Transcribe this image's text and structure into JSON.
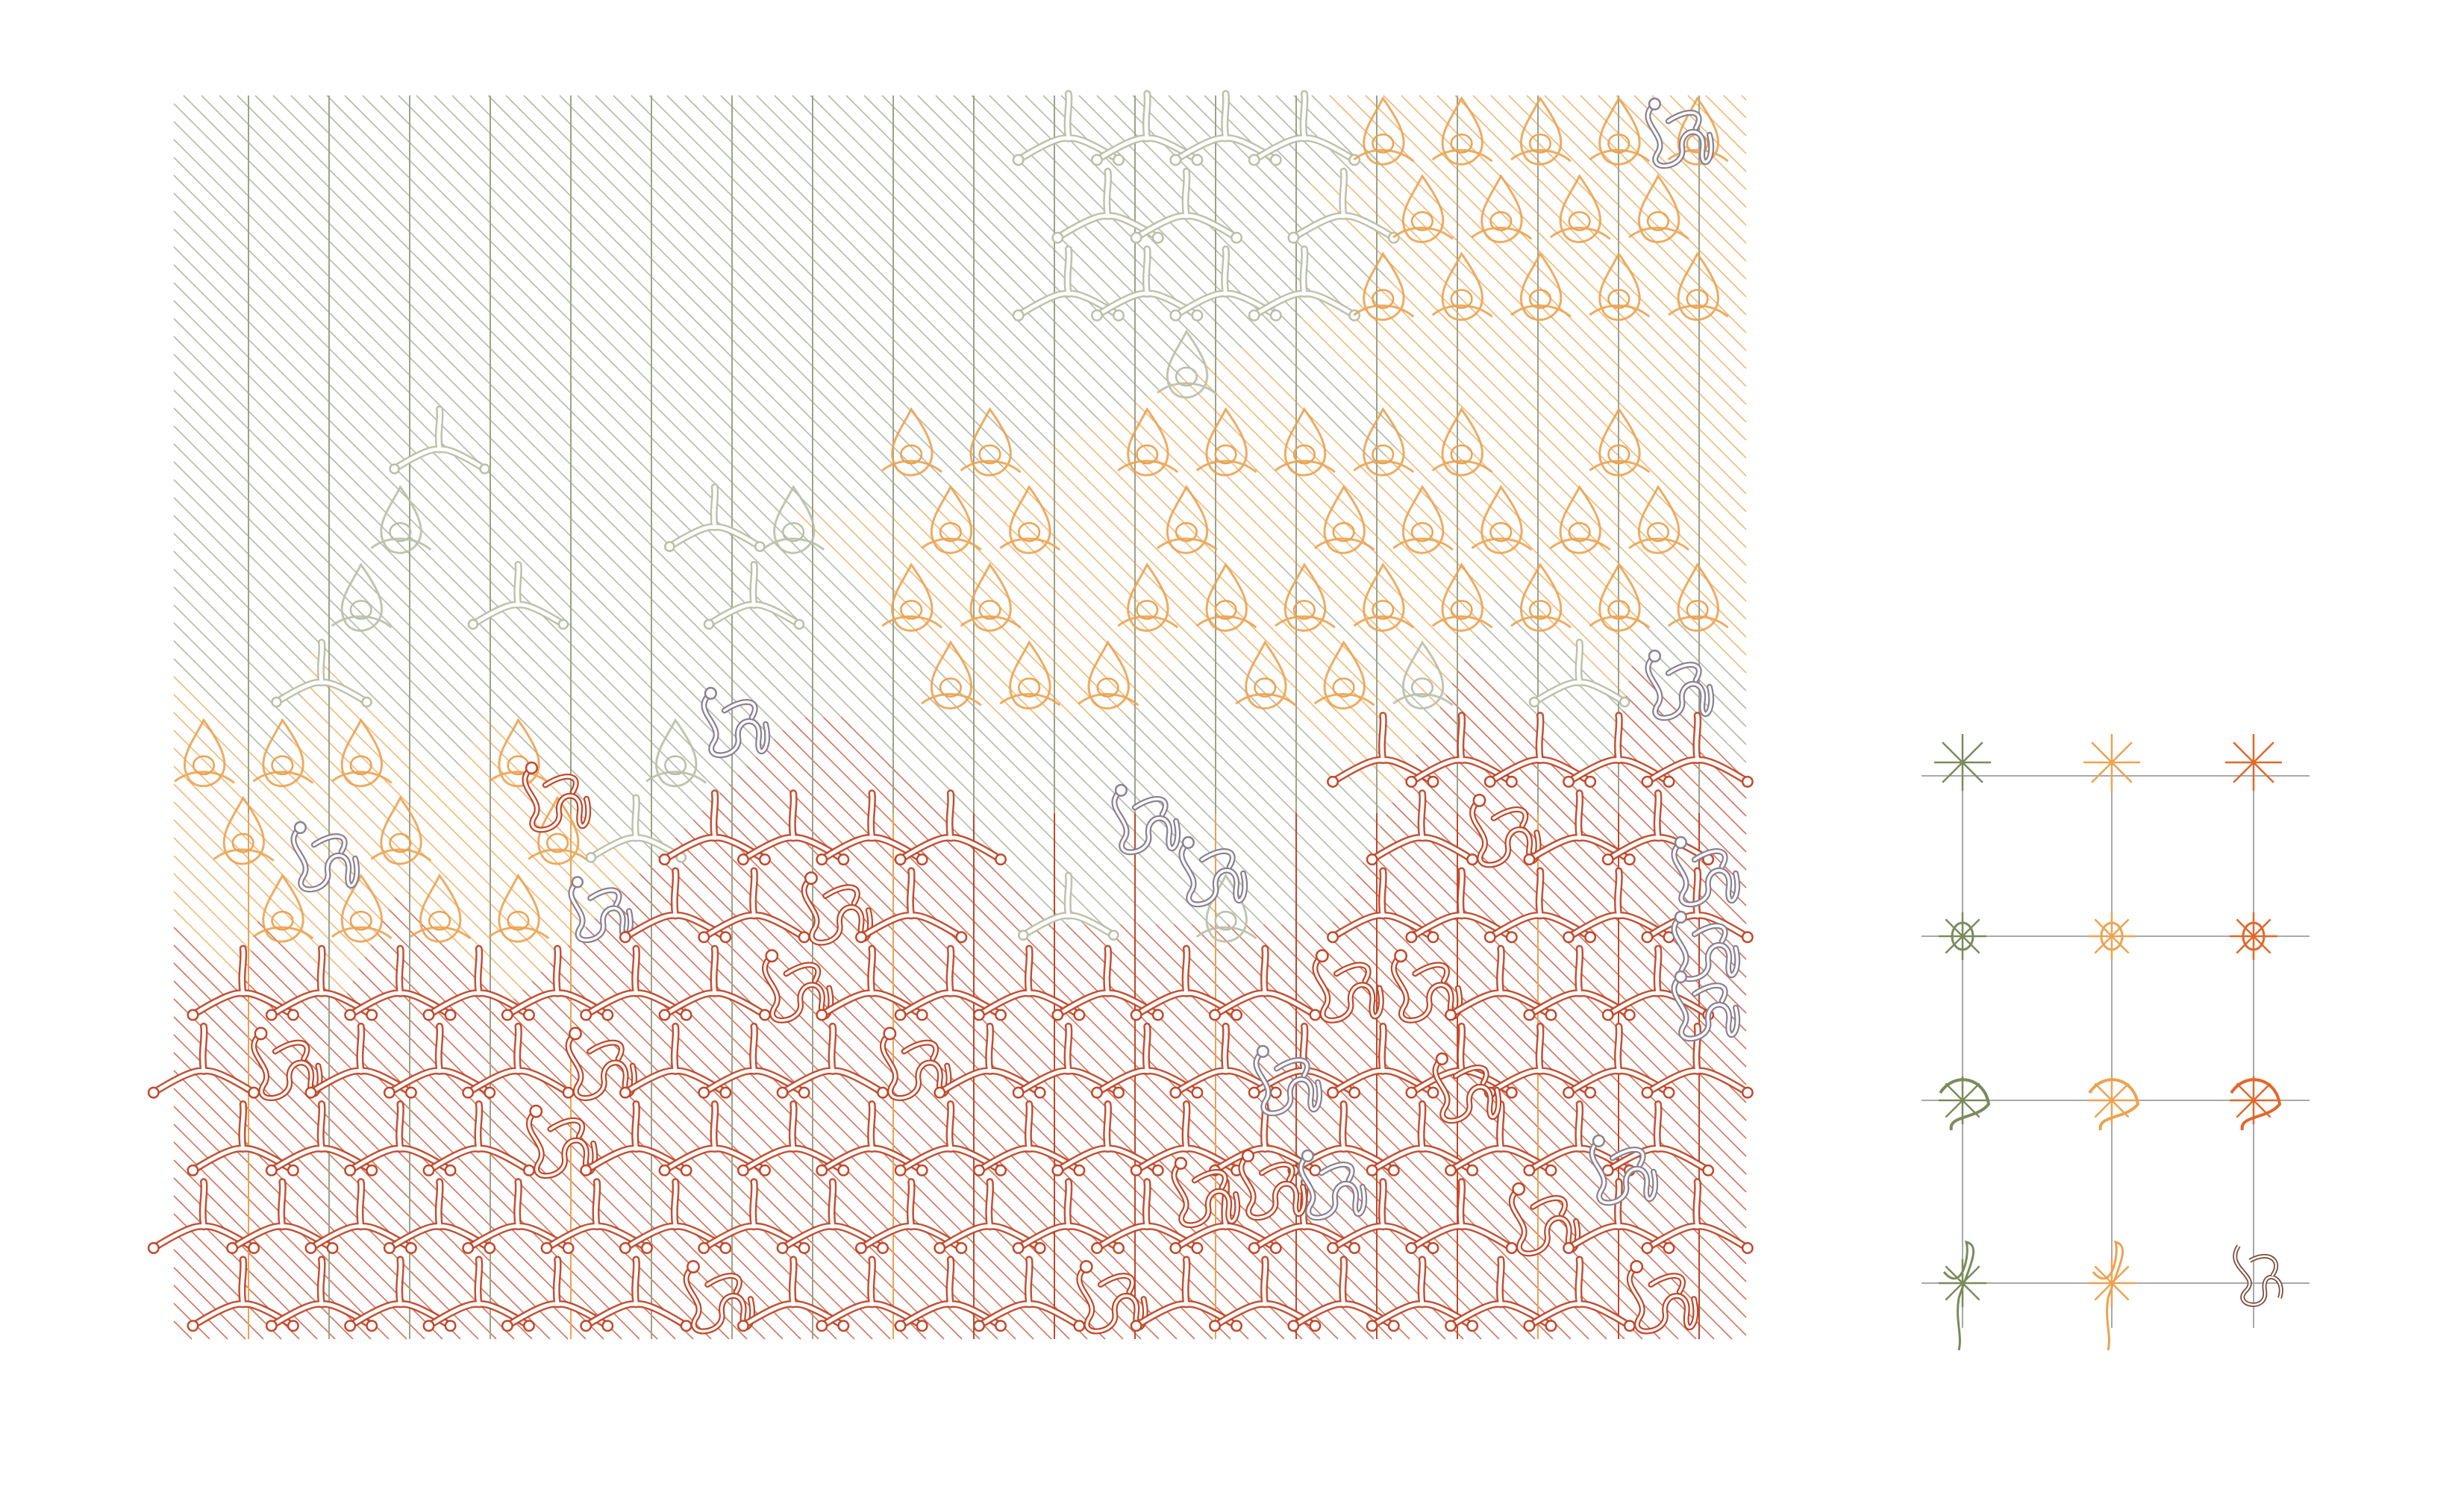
{
  "artwork": {
    "kind": "generative pattern drawing",
    "grid": {
      "columns": 20,
      "rows": 16
    },
    "palette": {
      "sage": "#9ba48a",
      "olive": "#7c8a5c",
      "pale_sage": "#b9bfa8",
      "orange": "#eba351",
      "rust": "#c0482a",
      "burnt_orange": "#e0682b",
      "grey_mauve": "#8a8290",
      "brown": "#7a4a3a",
      "grid_line": "#a9a9a9"
    },
    "zones": [
      {
        "name": "top-sage-band",
        "color": "sage"
      },
      {
        "name": "upper-right-orange-cluster",
        "color": "orange"
      },
      {
        "name": "middle-orange-cluster",
        "color": "orange"
      },
      {
        "name": "lower-rust-field",
        "color": "rust"
      },
      {
        "name": "grey-knotted-accents",
        "color": "grey_mauve"
      }
    ]
  },
  "legend": {
    "columns": [
      "olive",
      "orange",
      "burnt_orange"
    ],
    "rows": 4,
    "row_motifs": [
      "asterisk",
      "asterisk-loop",
      "asterisk-knot",
      "tangle"
    ],
    "last_cell_color": "brown"
  }
}
